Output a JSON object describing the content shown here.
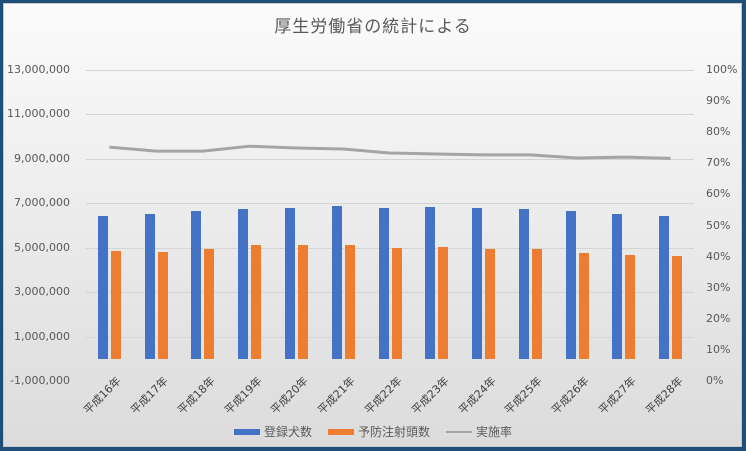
{
  "chart_data": {
    "type": "bar",
    "title": "厚生労働省の統計による",
    "categories": [
      "平成16年",
      "平成17年",
      "平成18年",
      "平成19年",
      "平成20年",
      "平成21年",
      "平成22年",
      "平成23年",
      "平成24年",
      "平成25年",
      "平成26年",
      "平成27年",
      "平成28年"
    ],
    "series": [
      {
        "name": "登録犬数",
        "type": "bar",
        "axis": "left",
        "color": "#4472c4",
        "values": [
          6440000,
          6510000,
          6660000,
          6750000,
          6790000,
          6880000,
          6800000,
          6840000,
          6800000,
          6750000,
          6650000,
          6540000,
          6450000
        ]
      },
      {
        "name": "予防注射頭数",
        "type": "bar",
        "axis": "left",
        "color": "#ed7d31",
        "values": [
          4830000,
          4790000,
          4920000,
          5110000,
          5100000,
          5100000,
          4990000,
          5010000,
          4920000,
          4920000,
          4780000,
          4690000,
          4620000
        ]
      },
      {
        "name": "実施率",
        "type": "line",
        "axis": "right",
        "color": "#a5a5a5",
        "values": [
          75.2,
          73.9,
          73.9,
          75.5,
          74.9,
          74.6,
          73.3,
          73.0,
          72.7,
          72.7,
          71.7,
          72.0,
          71.6
        ]
      }
    ],
    "xlabel": "",
    "ylabel": "",
    "ylim": [
      -1000000,
      13000000
    ],
    "y_ticks": [
      "13,000,000",
      "11,000,000",
      "9,000,000",
      "7,000,000",
      "5,000,000",
      "3,000,000",
      "1,000,000",
      "-1,000,000"
    ],
    "y2lim": [
      0,
      100
    ],
    "y2_ticks": [
      "100%",
      "90%",
      "80%",
      "70%",
      "60%",
      "50%",
      "40%",
      "30%",
      "20%",
      "10%",
      "0%"
    ],
    "grid": true,
    "legend_position": "bottom"
  }
}
